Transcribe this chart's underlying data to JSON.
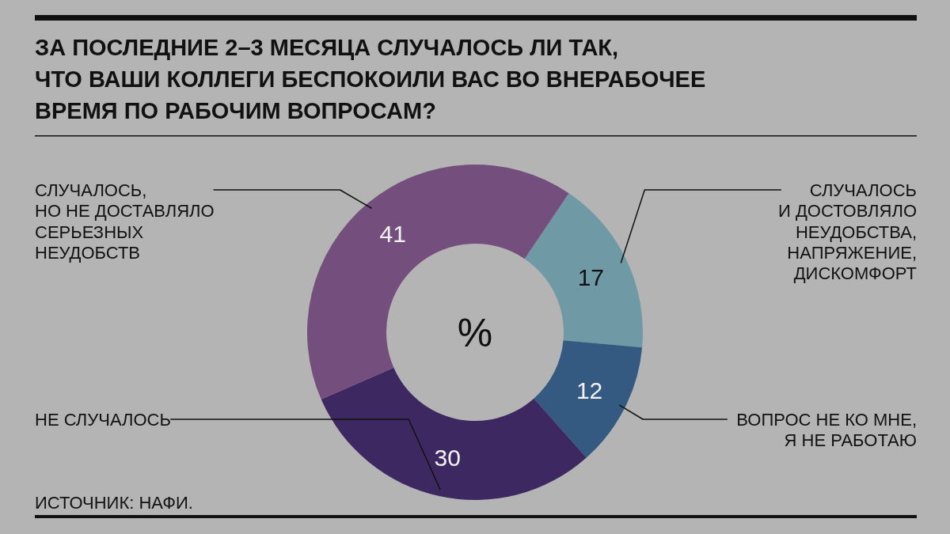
{
  "chart_data": {
    "type": "donut",
    "title": "ЗА ПОСЛЕДНИЕ 2–3 МЕСЯЦА СЛУЧАЛОСЬ ЛИ ТАК,\nЧТО ВАШИ КОЛЛЕГИ БЕСПОКОИЛИ ВАС ВО ВНЕРАБОЧЕЕ\nВРЕМЯ ПО РАБОЧИМ ВОПРОСАМ?",
    "categories": [
      "СЛУЧАЛОСЬ\nИ ДОСТОВЛЯЛО\nНЕУДОБСТВА,\nНАПРЯЖЕНИЕ,\nДИСКОМФОРТ",
      "ВОПРОС НЕ КО МНЕ,\nЯ НЕ РАБОТАЮ",
      "НЕ СЛУЧАЛОСЬ",
      "СЛУЧАЛОСЬ,\nНО НЕ ДОСТАВЛЯЛО\nСЕРЬЕЗНЫХ\nНЕУДОБСТВ"
    ],
    "values": [
      17,
      12,
      30,
      41
    ],
    "colors": [
      "#6f9aa5",
      "#355a81",
      "#3d2862",
      "#744e7c"
    ],
    "data_labels": true,
    "annotations": [
      "%",
      "ИСТОЧНИК: НАФИ."
    ]
  }
}
